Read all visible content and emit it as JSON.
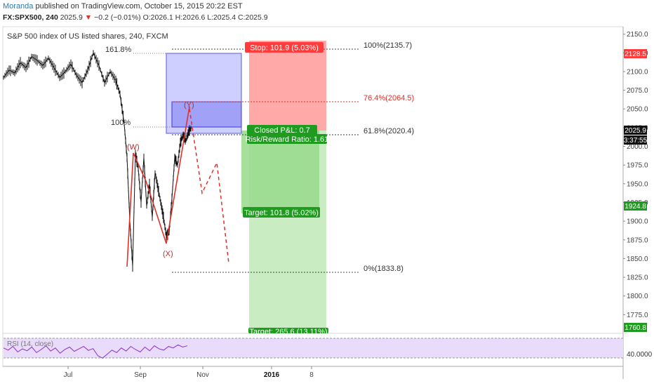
{
  "header": {
    "author": "Moranda",
    "published_text": "published on TradingView.com, October 15, 2015 20:22 EST",
    "symbol": "FX:SPX500, 240",
    "last": "2025.9",
    "change_arrow": "▼",
    "change": "−0.2 (−0.01%)",
    "ohlc": "O:2026.1 H:2026.6 L:2025.4 C:2025.9"
  },
  "chart_title": "S&P 500 index of US listed shares, 240, FXCM",
  "colors": {
    "accent": "#2a7ab0",
    "down": "#e0302a",
    "profit": "#1f9b1f",
    "stop": "#ff4040",
    "rsi": "#8b2fc9",
    "box": "#5a5ae0"
  },
  "chart_data": {
    "type": "line",
    "price_axis": {
      "ylim": [
        1750,
        2160
      ],
      "ticks": [
        "2150.0",
        "2125.0",
        "2100.0",
        "2075.0",
        "2050.0",
        "2025.0",
        "2000.0",
        "1975.0",
        "1950.0",
        "1925.0",
        "1900.0",
        "1875.0",
        "1850.0",
        "1825.0",
        "1800.0",
        "1775.0"
      ]
    },
    "x_ticks": [
      "Jul",
      "Sep",
      "Nov",
      "2016",
      "8"
    ],
    "price_x": [
      0,
      8,
      16,
      24,
      32,
      40,
      48,
      56,
      64,
      72,
      80,
      88,
      96,
      104,
      112,
      120,
      128,
      136,
      144,
      152,
      160,
      166,
      172,
      176,
      180,
      184,
      188,
      192,
      196,
      200,
      204,
      208,
      212,
      216,
      220,
      224,
      228,
      232,
      236,
      240,
      244,
      248,
      252,
      256,
      260,
      264,
      268
    ],
    "price_y": [
      2092,
      2102,
      2098,
      2112,
      2105,
      2120,
      2115,
      2108,
      2118,
      2105,
      2092,
      2100,
      2110,
      2095,
      2085,
      2102,
      2125,
      2108,
      2085,
      2100,
      2088,
      2070,
      2030,
      1985,
      1900,
      1840,
      1990,
      1970,
      1925,
      1985,
      1920,
      1950,
      1905,
      1965,
      1945,
      1925,
      1905,
      1880,
      1885,
      1930,
      1985,
      1975,
      2005,
      2015,
      2008,
      2020,
      2025
    ],
    "price_labels": {
      "last": "2025.9",
      "countdown": "3:37:55",
      "stop_price": "2128.5",
      "target1_price": "1924.8",
      "target2_price": "1760.8"
    },
    "fib_levels": [
      {
        "label": "100%(2135.7)",
        "value": 2135.7
      },
      {
        "label": "76.4%(2064.5)",
        "value": 2064.5
      },
      {
        "label": "61.8%(2020.4)",
        "value": 2020.4
      },
      {
        "label": "0%(1833.8)",
        "value": 1833.8
      }
    ],
    "ext_labels": {
      "l1618": "161.8%",
      "l100": "100%"
    },
    "wave_labels": [
      "(W)",
      "(X)",
      "(Y)"
    ],
    "trade": {
      "stop": "Stop: 101.9 (5.03%)",
      "closed": "Closed P&L: 0.7",
      "rr": "Risk/Reward Ratio: 1.61",
      "target1": "Target: 101.8 (5.02%)",
      "target2": "Target: 265.6 (13.11%)"
    },
    "rsi": {
      "label": "RSI (14, close)",
      "level": "40.0000",
      "values": [
        55,
        48,
        60,
        42,
        52,
        46,
        58,
        40,
        50,
        62,
        45,
        55,
        38,
        50,
        58,
        44,
        52,
        60,
        47,
        53,
        30,
        22,
        35,
        48,
        40,
        55,
        45,
        60,
        50,
        42,
        58,
        46,
        62,
        52,
        48,
        60,
        55,
        65,
        58,
        62
      ]
    }
  }
}
